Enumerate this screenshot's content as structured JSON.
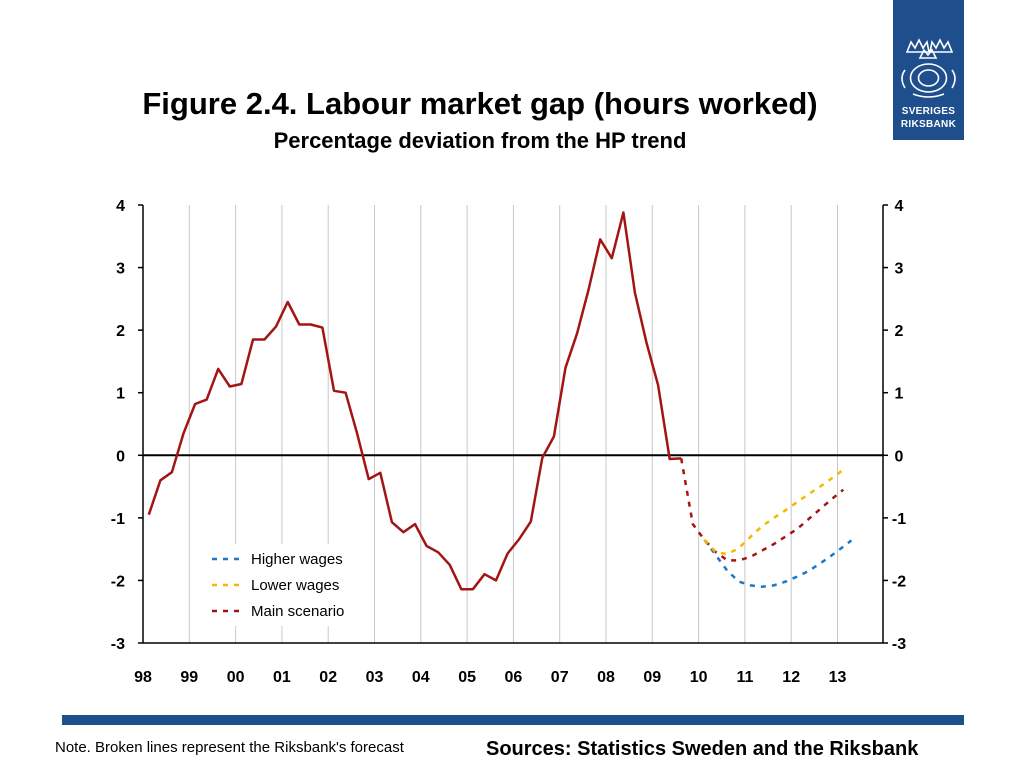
{
  "header": {
    "title": "Figure 2.4. Labour market gap (hours worked)",
    "subtitle": "Percentage deviation from the HP trend"
  },
  "logo": {
    "line1": "SVERIGES",
    "line2": "RIKSBANK",
    "icon": "riksbank-crest-icon",
    "color": "#1f4e8c"
  },
  "footer": {
    "note": "Note. Broken lines represent the Riksbank's forecast",
    "sources": "Sources: Statistics Sweden and the Riksbank"
  },
  "chart_data": {
    "type": "line",
    "title": "Figure 2.4. Labour market gap (hours worked)",
    "subtitle": "Percentage deviation from the HP trend",
    "xlabel": "",
    "ylabel": "",
    "xlim": [
      1998,
      2013.3
    ],
    "ylim": [
      -3,
      4
    ],
    "yticks": [
      4,
      3,
      2,
      1,
      0,
      -1,
      -2,
      -3
    ],
    "xtick_labels": [
      "98",
      "99",
      "00",
      "01",
      "02",
      "03",
      "04",
      "05",
      "06",
      "07",
      "08",
      "09",
      "10",
      "11",
      "12",
      "13"
    ],
    "xtick_years": [
      1998,
      1999,
      2000,
      2001,
      2002,
      2003,
      2004,
      2005,
      2006,
      2007,
      2008,
      2009,
      2010,
      2011,
      2012,
      2013
    ],
    "grid": "vertical",
    "legend_position": "bottom-left",
    "series": [
      {
        "key": "outcome",
        "style": "solid",
        "color": "#a31515",
        "x": [
          1998.125,
          1998.375,
          1998.625,
          1998.875,
          1999.125,
          1999.375,
          1999.625,
          1999.875,
          2000.125,
          2000.375,
          2000.625,
          2000.875,
          2001.125,
          2001.375,
          2001.625,
          2001.875,
          2002.125,
          2002.375,
          2002.625,
          2002.875,
          2003.125,
          2003.375,
          2003.625,
          2003.875,
          2004.125,
          2004.375,
          2004.625,
          2004.875,
          2005.125,
          2005.375,
          2005.625,
          2005.875,
          2006.125,
          2006.375,
          2006.625,
          2006.875,
          2007.125,
          2007.375,
          2007.625,
          2007.875,
          2008.125,
          2008.375,
          2008.625,
          2008.875,
          2009.125,
          2009.375,
          2009.625
        ],
        "y": [
          -0.95,
          -0.4,
          -0.27,
          0.35,
          0.82,
          0.89,
          1.38,
          1.1,
          1.14,
          1.85,
          1.85,
          2.06,
          2.45,
          2.09,
          2.09,
          2.04,
          1.03,
          1.0,
          0.35,
          -0.38,
          -0.28,
          -1.07,
          -1.23,
          -1.1,
          -1.45,
          -1.55,
          -1.75,
          -2.14,
          -2.14,
          -1.9,
          -2.0,
          -1.57,
          -1.34,
          -1.06,
          -0.04,
          0.3,
          1.4,
          1.95,
          2.65,
          3.45,
          3.15,
          3.88,
          2.6,
          1.8,
          1.12,
          -0.06,
          -0.05
        ]
      },
      {
        "key": "forecast-main",
        "name": "Main scenario",
        "style": "dashed",
        "color": "#a31515",
        "x": [
          2009.625,
          2009.875,
          2010.125,
          2010.375,
          2010.625,
          2010.875,
          2011.125,
          2011.375,
          2011.625,
          2011.875,
          2012.125,
          2012.375,
          2012.625,
          2012.875,
          2013.125
        ],
        "y": [
          -0.05,
          -1.1,
          -1.35,
          -1.55,
          -1.68,
          -1.68,
          -1.62,
          -1.52,
          -1.42,
          -1.3,
          -1.18,
          -1.02,
          -0.86,
          -0.7,
          -0.55
        ]
      },
      {
        "key": "forecast-higher",
        "name": "Higher wages",
        "style": "dashed",
        "color": "#1f77c4",
        "x": [
          2010.125,
          2010.375,
          2010.625,
          2010.875,
          2011.125,
          2011.375,
          2011.625,
          2011.875,
          2012.125,
          2012.375,
          2012.625,
          2012.875,
          2013.125,
          2013.3
        ],
        "y": [
          -1.35,
          -1.6,
          -1.85,
          -2.02,
          -2.08,
          -2.1,
          -2.08,
          -2.02,
          -1.94,
          -1.85,
          -1.73,
          -1.6,
          -1.46,
          -1.36
        ]
      },
      {
        "key": "forecast-lower",
        "name": "Lower wages",
        "style": "dashed",
        "color": "#f5b800",
        "x": [
          2010.125,
          2010.375,
          2010.625,
          2010.875,
          2011.125,
          2011.375,
          2011.625,
          2011.875,
          2012.125,
          2012.375,
          2012.625,
          2012.875,
          2013.125
        ],
        "y": [
          -1.35,
          -1.55,
          -1.58,
          -1.48,
          -1.3,
          -1.13,
          -1.0,
          -0.88,
          -0.75,
          -0.62,
          -0.5,
          -0.37,
          -0.23
        ]
      }
    ]
  }
}
